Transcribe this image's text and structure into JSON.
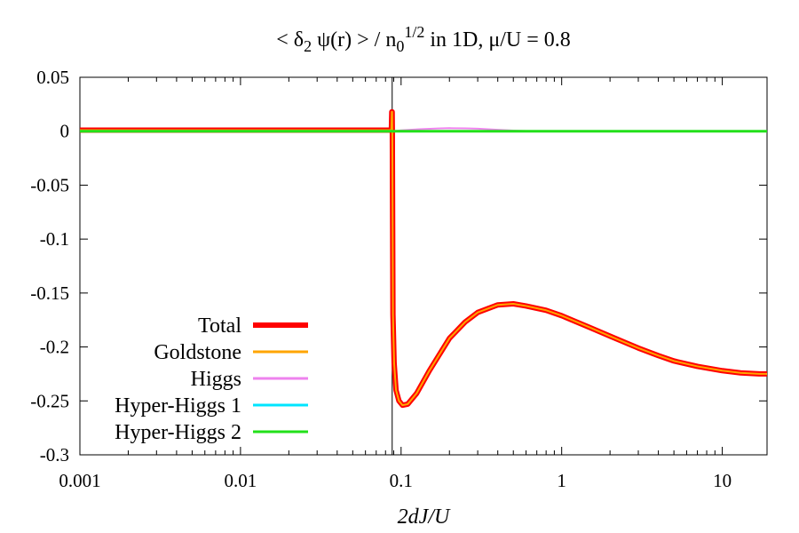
{
  "chart_data": {
    "type": "line",
    "title": {
      "prefix": "< δ",
      "sub1": "2",
      "mid": " ψ(r) > / n",
      "sub2": "0",
      "sup": "1/2",
      "suffix": " in 1D, μ/U = 0.8"
    },
    "xlabel": "2dJ/U",
    "ylabel": "",
    "xscale": "log",
    "xlim": [
      0.001,
      19
    ],
    "ylim": [
      -0.3,
      0.05
    ],
    "x_ticks": [
      {
        "value": 0.001,
        "label": "0.001"
      },
      {
        "value": 0.01,
        "label": "0.01"
      },
      {
        "value": 0.1,
        "label": "0.1"
      },
      {
        "value": 1,
        "label": "1"
      },
      {
        "value": 10,
        "label": "10"
      }
    ],
    "y_ticks": [
      {
        "value": 0.05,
        "label": "0.05"
      },
      {
        "value": 0,
        "label": "0"
      },
      {
        "value": -0.05,
        "label": "-0.05"
      },
      {
        "value": -0.1,
        "label": "-0.1"
      },
      {
        "value": -0.15,
        "label": "-0.15"
      },
      {
        "value": -0.2,
        "label": "-0.2"
      },
      {
        "value": -0.25,
        "label": "-0.25"
      },
      {
        "value": -0.3,
        "label": "-0.3"
      }
    ],
    "vline_x": 0.088,
    "legend_position": "bottom-left",
    "series": [
      {
        "name": "Total",
        "color": "#ff0000",
        "width": 6,
        "x": [
          0.001,
          0.087,
          0.0875,
          0.088,
          0.0882,
          0.089,
          0.0905,
          0.093,
          0.097,
          0.102,
          0.11,
          0.125,
          0.15,
          0.2,
          0.25,
          0.3,
          0.4,
          0.5,
          0.6,
          0.8,
          1,
          1.5,
          2,
          3,
          4,
          5,
          7,
          10,
          13,
          17,
          19
        ],
        "y": [
          0.001,
          0.001,
          0.018,
          0.018,
          -0.001,
          -0.17,
          -0.215,
          -0.24,
          -0.25,
          -0.254,
          -0.253,
          -0.243,
          -0.222,
          -0.192,
          -0.177,
          -0.168,
          -0.161,
          -0.16,
          -0.162,
          -0.166,
          -0.171,
          -0.182,
          -0.19,
          -0.201,
          -0.208,
          -0.213,
          -0.218,
          -0.222,
          -0.224,
          -0.225,
          -0.225
        ]
      },
      {
        "name": "Goldstone",
        "color": "#ffa500",
        "width": 2,
        "x": [
          0.001,
          0.087,
          0.0875,
          0.088,
          0.0882,
          0.089,
          0.0905,
          0.093,
          0.097,
          0.102,
          0.11,
          0.125,
          0.15,
          0.2,
          0.25,
          0.3,
          0.4,
          0.5,
          0.6,
          0.8,
          1,
          1.5,
          2,
          3,
          4,
          5,
          7,
          10,
          13,
          17,
          19
        ],
        "y": [
          0.001,
          0.001,
          0.018,
          0.018,
          -0.001,
          -0.17,
          -0.215,
          -0.24,
          -0.25,
          -0.254,
          -0.253,
          -0.243,
          -0.222,
          -0.192,
          -0.177,
          -0.168,
          -0.161,
          -0.16,
          -0.162,
          -0.166,
          -0.171,
          -0.182,
          -0.19,
          -0.201,
          -0.208,
          -0.213,
          -0.218,
          -0.222,
          -0.224,
          -0.225,
          -0.225
        ]
      },
      {
        "name": "Higgs",
        "color": "#ee82ee",
        "width": 2,
        "x": [
          0.001,
          0.088,
          0.1,
          0.13,
          0.17,
          0.2,
          0.25,
          0.3,
          0.4,
          0.5,
          0.6,
          0.8,
          1,
          10,
          19
        ],
        "y": [
          0,
          0,
          0.0008,
          0.0018,
          0.0025,
          0.0028,
          0.0027,
          0.0023,
          0.0013,
          0.0006,
          0.0002,
          0.0,
          0,
          0,
          0
        ]
      },
      {
        "name": "Hyper-Higgs 1",
        "color": "#00e5ff",
        "width": 2,
        "x": [
          0.001,
          19
        ],
        "y": [
          0,
          0
        ]
      },
      {
        "name": "Hyper-Higgs 2",
        "color": "#22e01a",
        "width": 3,
        "x": [
          0.001,
          19
        ],
        "y": [
          0,
          0
        ]
      }
    ]
  }
}
